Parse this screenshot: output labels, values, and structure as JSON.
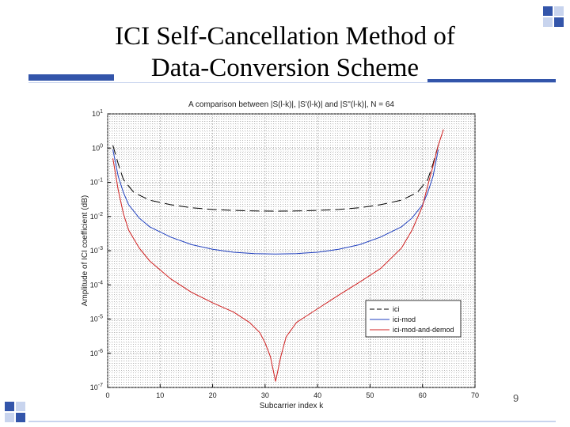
{
  "slide": {
    "title_line1": "ICI Self-Cancellation Method of",
    "title_line2": "Data-Conversion Scheme",
    "page_number": "9",
    "accent_color": "#3355aa"
  },
  "chart_data": {
    "type": "line",
    "title": "A comparison between |S(l-k)|, |S'(l-k)| and |S''(l-k)|, N = 64",
    "xlabel": "Subcarrier index k",
    "ylabel": "Amplitude of ICI coefficient (dB)",
    "xlim": [
      0,
      70
    ],
    "ylim": [
      1e-07,
      10
    ],
    "yscale": "log",
    "xticks": [
      "0",
      "10",
      "20",
      "30",
      "40",
      "50",
      "60",
      "70"
    ],
    "yticks": [
      {
        "base": "10",
        "exp": "1"
      },
      {
        "base": "10",
        "exp": "0"
      },
      {
        "base": "10",
        "exp": "-1"
      },
      {
        "base": "10",
        "exp": "-2"
      },
      {
        "base": "10",
        "exp": "-3"
      },
      {
        "base": "10",
        "exp": "-4"
      },
      {
        "base": "10",
        "exp": "-5"
      },
      {
        "base": "10",
        "exp": "-6"
      },
      {
        "base": "10",
        "exp": "-7"
      }
    ],
    "grid": true,
    "legend_position": "bottom-right",
    "series": [
      {
        "name": "ici",
        "color": "#000000",
        "style": "dashed",
        "x": [
          1,
          2,
          3,
          5,
          8,
          12,
          16,
          20,
          24,
          28,
          32,
          36,
          40,
          44,
          48,
          52,
          56,
          59,
          61,
          62,
          63
        ],
        "y": [
          1.2,
          0.35,
          0.12,
          0.05,
          0.03,
          0.022,
          0.018,
          0.016,
          0.015,
          0.0145,
          0.0143,
          0.0145,
          0.015,
          0.016,
          0.018,
          0.022,
          0.03,
          0.05,
          0.12,
          0.35,
          1.2
        ]
      },
      {
        "name": "ici-mod",
        "color": "#1f3fbf",
        "style": "solid",
        "x": [
          1,
          2,
          3,
          4,
          6,
          8,
          12,
          16,
          20,
          24,
          28,
          32,
          36,
          40,
          44,
          48,
          52,
          56,
          58,
          60,
          61,
          62,
          63
        ],
        "y": [
          0.9,
          0.15,
          0.05,
          0.022,
          0.009,
          0.005,
          0.0025,
          0.0015,
          0.0011,
          0.0009,
          0.00082,
          0.0008,
          0.00082,
          0.0009,
          0.0011,
          0.0015,
          0.0025,
          0.005,
          0.009,
          0.022,
          0.05,
          0.15,
          0.9
        ]
      },
      {
        "name": "ici-mod-and-demod",
        "color": "#d02020",
        "style": "solid",
        "x": [
          1,
          2,
          3,
          4,
          6,
          8,
          12,
          16,
          20,
          24,
          27,
          29,
          30,
          31,
          32,
          33,
          34,
          36,
          40,
          44,
          48,
          52,
          56,
          58,
          60,
          61,
          62,
          63,
          64
        ],
        "y": [
          0.5,
          0.06,
          0.012,
          0.004,
          0.0012,
          0.0005,
          0.00015,
          6e-05,
          3e-05,
          1.6e-05,
          8e-06,
          4e-06,
          2e-06,
          8e-07,
          1.5e-07,
          8e-07,
          3e-06,
          8e-06,
          2e-05,
          5e-05,
          0.00012,
          0.0003,
          0.0012,
          0.004,
          0.02,
          0.08,
          0.3,
          1.2,
          3.5
        ]
      }
    ]
  }
}
